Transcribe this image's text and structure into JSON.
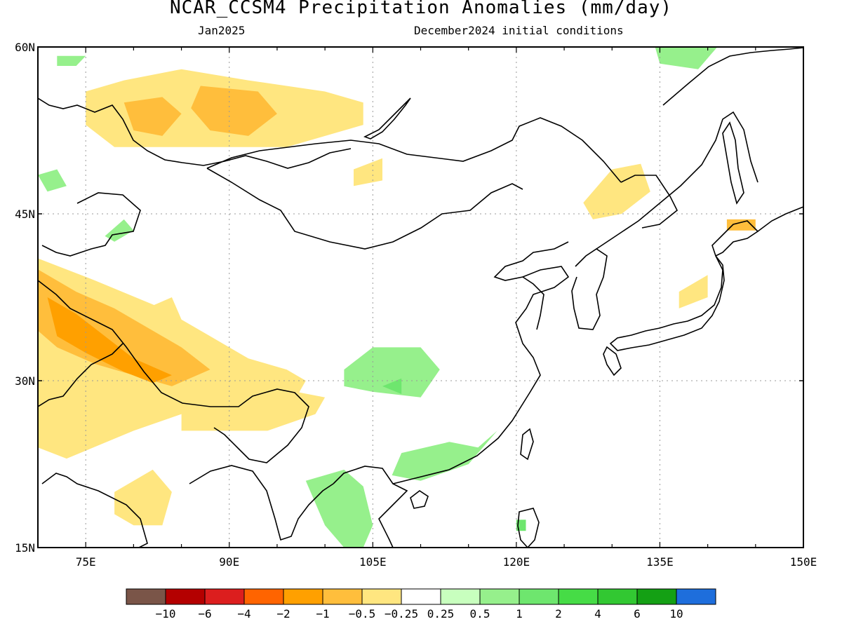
{
  "header": {
    "title": "NCAR_CCSM4 Precipitation Anomalies (mm/day)",
    "month": "Jan2025",
    "init": "December2024 initial conditions"
  },
  "map": {
    "lon_range": [
      70,
      150
    ],
    "lat_range": [
      15,
      60
    ],
    "lat_ticks": [
      {
        "value": 60,
        "label": "60N"
      },
      {
        "value": 45,
        "label": "45N"
      },
      {
        "value": 30,
        "label": "30N"
      },
      {
        "value": 15,
        "label": "15N"
      }
    ],
    "lon_ticks": [
      {
        "value": 75,
        "label": "75E"
      },
      {
        "value": 90,
        "label": "90E"
      },
      {
        "value": 105,
        "label": "105E"
      },
      {
        "value": 120,
        "label": "120E"
      },
      {
        "value": 135,
        "label": "135E"
      },
      {
        "value": 150,
        "label": "150E"
      }
    ],
    "gridlines": "dotted",
    "coastlines": true
  },
  "colorbar": {
    "colors": [
      "#7a5548",
      "#b40000",
      "#dc1e1e",
      "#ff6400",
      "#ffa000",
      "#ffbe3c",
      "#ffe680",
      "#ffffff",
      "#c8ffbe",
      "#96f08c",
      "#6ee66e",
      "#46dc46",
      "#32c832",
      "#14a014",
      "#1e6edc"
    ],
    "labels": [
      "−10",
      "−6",
      "−4",
      "−2",
      "−1",
      "−0.5",
      "−0.25",
      "0.25",
      "0.5",
      "1",
      "2",
      "4",
      "6",
      "10"
    ]
  },
  "anomaly_regions": [
    {
      "level": "-0.5",
      "color": "#ffe680",
      "lonlat": [
        [
          75,
          56
        ],
        [
          79,
          57
        ],
        [
          85,
          58
        ],
        [
          92,
          57
        ],
        [
          100,
          56
        ],
        [
          104,
          55
        ],
        [
          104,
          53
        ],
        [
          96,
          51
        ],
        [
          90,
          51
        ],
        [
          84,
          51
        ],
        [
          78,
          51
        ],
        [
          75,
          53
        ]
      ]
    },
    {
      "level": "-1",
      "color": "#ffbe3c",
      "lonlat": [
        [
          79,
          55
        ],
        [
          83,
          55.5
        ],
        [
          85,
          54
        ],
        [
          83,
          52
        ],
        [
          80,
          52.5
        ]
      ]
    },
    {
      "level": "-1",
      "color": "#ffbe3c",
      "lonlat": [
        [
          87,
          56.5
        ],
        [
          93,
          56
        ],
        [
          95,
          54
        ],
        [
          92,
          52
        ],
        [
          88,
          52.5
        ],
        [
          86,
          54.5
        ]
      ]
    },
    {
      "level": "-0.5",
      "color": "#ffe680",
      "lonlat": [
        [
          70,
          41
        ],
        [
          76,
          39
        ],
        [
          83,
          36.5
        ],
        [
          88,
          34
        ],
        [
          92,
          32
        ],
        [
          96,
          31
        ],
        [
          98,
          30
        ],
        [
          96,
          27
        ],
        [
          91,
          26
        ],
        [
          88,
          26.5
        ],
        [
          85,
          27
        ],
        [
          80,
          25.5
        ],
        [
          73,
          23
        ],
        [
          70,
          24
        ]
      ]
    },
    {
      "level": "-1",
      "color": "#ffbe3c",
      "lonlat": [
        [
          70,
          40
        ],
        [
          74,
          38
        ],
        [
          78,
          36.5
        ],
        [
          82,
          34.5
        ],
        [
          85,
          33
        ],
        [
          88,
          31
        ],
        [
          84,
          29.5
        ],
        [
          80,
          30.5
        ],
        [
          76,
          31.5
        ],
        [
          72,
          33
        ],
        [
          70,
          34.5
        ]
      ]
    },
    {
      "level": "-2",
      "color": "#ffa000",
      "lonlat": [
        [
          71,
          37.5
        ],
        [
          74,
          36
        ],
        [
          77,
          34
        ],
        [
          80,
          32
        ],
        [
          84,
          30.5
        ],
        [
          82,
          29.8
        ],
        [
          79,
          30.8
        ],
        [
          75,
          32.5
        ],
        [
          72,
          34
        ]
      ]
    },
    {
      "level": "-0.5",
      "color": "#ffe680",
      "lonlat": [
        [
          85,
          25.5
        ],
        [
          94,
          25.5
        ],
        [
          99,
          27
        ],
        [
          100,
          28.5
        ],
        [
          97,
          29
        ],
        [
          92,
          28.8
        ],
        [
          89,
          28.3
        ],
        [
          85,
          27
        ]
      ]
    },
    {
      "level": "-0.5",
      "color": "#ffe680",
      "lonlat": [
        [
          78,
          20
        ],
        [
          82,
          22
        ],
        [
          84,
          20
        ],
        [
          83,
          17
        ],
        [
          80,
          17
        ],
        [
          78,
          18
        ]
      ]
    },
    {
      "level": "-0.5",
      "color": "#ffe680",
      "lonlat": [
        [
          80,
          36
        ],
        [
          84,
          37.5
        ],
        [
          85,
          35.5
        ],
        [
          82,
          35
        ]
      ]
    },
    {
      "level": "-0.5",
      "color": "#ffe680",
      "lonlat": [
        [
          103,
          49
        ],
        [
          106,
          50
        ],
        [
          106,
          48
        ],
        [
          103,
          47.5
        ]
      ]
    },
    {
      "level": "-0.5",
      "color": "#ffe680",
      "lonlat": [
        [
          127,
          46
        ],
        [
          130,
          49
        ],
        [
          133,
          49.5
        ],
        [
          134,
          47
        ],
        [
          131,
          45
        ],
        [
          128,
          44.5
        ]
      ]
    },
    {
      "level": "-1",
      "color": "#ffbe3c",
      "lonlat": [
        [
          142,
          44.5
        ],
        [
          145,
          44.5
        ],
        [
          145,
          43.5
        ],
        [
          142,
          43.5
        ]
      ]
    },
    {
      "level": "-0.5",
      "color": "#ffe680",
      "lonlat": [
        [
          137,
          38
        ],
        [
          140,
          39.5
        ],
        [
          140,
          37.5
        ],
        [
          137,
          36.5
        ]
      ]
    },
    {
      "level": "0.5",
      "color": "#96f08c",
      "lonlat": [
        [
          102,
          31
        ],
        [
          105,
          33
        ],
        [
          110,
          33
        ],
        [
          112,
          31
        ],
        [
          110,
          28.5
        ],
        [
          105,
          29
        ],
        [
          102,
          29.5
        ]
      ]
    },
    {
      "level": "1",
      "color": "#6ee66e",
      "lonlat": [
        [
          106,
          29.5
        ],
        [
          108,
          30.2
        ],
        [
          108,
          28.8
        ]
      ]
    },
    {
      "level": "0.5",
      "color": "#96f08c",
      "lonlat": [
        [
          108,
          23.5
        ],
        [
          113,
          24.5
        ],
        [
          116,
          24
        ],
        [
          118,
          25.5
        ],
        [
          115,
          22.5
        ],
        [
          110,
          21
        ],
        [
          107,
          21.5
        ]
      ]
    },
    {
      "level": "0.5",
      "color": "#96f08c",
      "lonlat": [
        [
          98,
          21
        ],
        [
          102,
          22
        ],
        [
          104,
          20.5
        ],
        [
          105,
          17
        ],
        [
          104,
          15
        ],
        [
          102,
          15
        ],
        [
          100,
          17
        ]
      ]
    },
    {
      "level": "0.5",
      "color": "#96f08c",
      "lonlat": [
        [
          70,
          48.5
        ],
        [
          72,
          49
        ],
        [
          73,
          47.5
        ],
        [
          71,
          47
        ]
      ]
    },
    {
      "level": "0.5",
      "color": "#96f08c",
      "lonlat": [
        [
          72,
          59.2
        ],
        [
          75,
          59.2
        ],
        [
          74,
          58.3
        ],
        [
          72,
          58.3
        ]
      ]
    },
    {
      "level": "0.5",
      "color": "#96f08c",
      "lonlat": [
        [
          77,
          43
        ],
        [
          79,
          44.5
        ],
        [
          80,
          43.5
        ],
        [
          78,
          42.5
        ]
      ]
    },
    {
      "level": "0.5",
      "color": "#96f08c",
      "lonlat": [
        [
          134.5,
          60
        ],
        [
          141,
          60
        ],
        [
          139,
          58
        ],
        [
          135,
          58.5
        ]
      ]
    },
    {
      "level": "1",
      "color": "#6ee66e",
      "lonlat": [
        [
          120,
          17.5
        ],
        [
          121,
          17.5
        ],
        [
          121,
          16.5
        ],
        [
          120,
          16.5
        ]
      ]
    }
  ]
}
